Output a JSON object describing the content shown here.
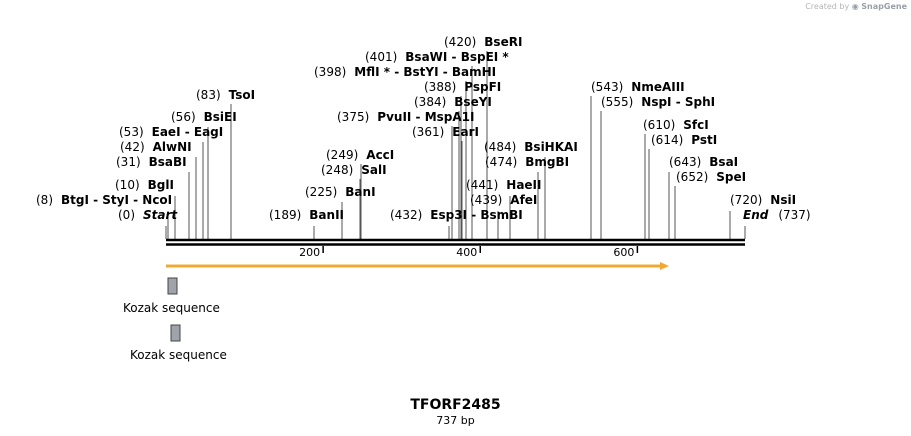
{
  "credit": {
    "prefix": "Created by",
    "brand": "SnapGene"
  },
  "title": "TFORF2485",
  "subtitle": "737 bp",
  "sequence_length": 737,
  "ticks": [
    200,
    400,
    600
  ],
  "cut_sites": [
    {
      "pos": "(0)",
      "name": "Start",
      "italic": true,
      "bp": 0
    },
    {
      "pos": "(8)",
      "name": "BtgI  -  StyI  -  NcoI",
      "bp": 8
    },
    {
      "pos": "(10)",
      "name": "BglI",
      "bp": 10
    },
    {
      "pos": "(31)",
      "name": "BsaBI",
      "bp": 31
    },
    {
      "pos": "(42)",
      "name": "AlwNI",
      "bp": 42
    },
    {
      "pos": "(53)",
      "name": "EaeI  -  EagI",
      "bp": 53
    },
    {
      "pos": "(56)",
      "name": "BsiEI",
      "bp": 56
    },
    {
      "pos": "(83)",
      "name": "TsoI",
      "bp": 83
    },
    {
      "pos": "(189)",
      "name": "BanII",
      "bp": 189
    },
    {
      "pos": "(225)",
      "name": "BanI",
      "bp": 225
    },
    {
      "pos": "(248)",
      "name": "SalI",
      "bp": 248
    },
    {
      "pos": "(249)",
      "name": "AccI",
      "bp": 249
    },
    {
      "pos": "(375)",
      "name": "PvuII  -  MspA1I",
      "bp": 375
    },
    {
      "pos": "(361)",
      "name": "EarI",
      "bp": 361
    },
    {
      "pos": "(384)",
      "name": "BseYI",
      "bp": 384
    },
    {
      "pos": "(388)",
      "name": "PspFI",
      "bp": 388
    },
    {
      "pos": "(398)",
      "name": "MflI * - BstYI  -  BamHI",
      "bp": 398
    },
    {
      "pos": "(401)",
      "name": "BsaWI  -  BspEI *",
      "bp": 401
    },
    {
      "pos": "(420)",
      "name": "BseRI",
      "bp": 420
    },
    {
      "pos": "(484)",
      "name": "BsiHKAI",
      "bp": 484
    },
    {
      "pos": "(474)",
      "name": "BmgBI",
      "bp": 474
    },
    {
      "pos": "(441)",
      "name": "HaeII",
      "bp": 441
    },
    {
      "pos": "(439)",
      "name": "AfeI",
      "bp": 439
    },
    {
      "pos": "(432)",
      "name": "Esp3I  -  BsmBI",
      "bp": 432
    },
    {
      "pos": "(543)",
      "name": "NmeAIII",
      "bp": 543
    },
    {
      "pos": "(555)",
      "name": "NspI  -  SphI",
      "bp": 555
    },
    {
      "pos": "(610)",
      "name": "SfcI",
      "bp": 610
    },
    {
      "pos": "(614)",
      "name": "PstI",
      "bp": 614
    },
    {
      "pos": "(643)",
      "name": "BsaI",
      "bp": 643
    },
    {
      "pos": "(652)",
      "name": "SpeI",
      "bp": 652
    },
    {
      "pos": "(720)",
      "name": "NsiI",
      "bp": 720
    },
    {
      "pos": "(737)",
      "name": "End",
      "italic": true,
      "bp": 737
    }
  ],
  "features": [
    {
      "label": "Kozak sequence",
      "color": "#a0a4aa"
    },
    {
      "label": "Kozak sequence",
      "color": "#a0a4aa"
    }
  ],
  "orf_color": "#f0a830"
}
